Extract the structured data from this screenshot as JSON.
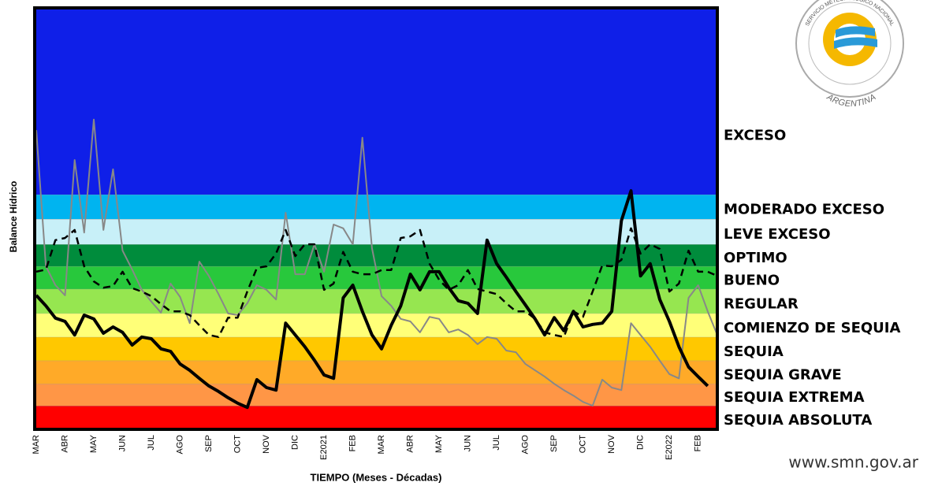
{
  "chart_data": {
    "type": "line",
    "y_label": "Balance Hídrico",
    "x_label": "TIEMPO (Meses - Décadas)",
    "source": "www.smn.gov.ar",
    "ylim": [
      0,
      100
    ],
    "categories": [
      "MAR",
      null,
      null,
      "ABR",
      null,
      null,
      "MAY",
      null,
      null,
      "JUN",
      null,
      null,
      "JUL",
      null,
      null,
      "AGO",
      null,
      null,
      "SEP",
      null,
      null,
      "OCT",
      null,
      null,
      "NOV",
      null,
      null,
      "DIC",
      null,
      null,
      "E2021",
      null,
      null,
      "FEB",
      null,
      null,
      "MAR",
      null,
      null,
      "ABR",
      null,
      null,
      "MAY",
      null,
      null,
      "JUN",
      null,
      null,
      "JUL",
      null,
      null,
      "AGO",
      null,
      null,
      "SEP",
      null,
      null,
      "OCT",
      null,
      null,
      "NOV",
      null,
      null,
      "DIC",
      null,
      null,
      "E2022",
      null,
      null,
      "FEB",
      null,
      null
    ],
    "bands": [
      {
        "name": "SEQUIA ABSOLUTA",
        "color": "#ff0000",
        "from": 0,
        "to": 5.6
      },
      {
        "name": "SEQUIA EXTREMA",
        "color": "#ff9646",
        "from": 5.6,
        "to": 10.8
      },
      {
        "name": "SEQUIA GRAVE",
        "color": "#ffaa28",
        "from": 10.8,
        "to": 16.3
      },
      {
        "name": "SEQUIA",
        "color": "#ffc800",
        "from": 16.3,
        "to": 21.9
      },
      {
        "name": "COMIENZO DE SEQUIA",
        "color": "#ffff78",
        "from": 21.9,
        "to": 27.5
      },
      {
        "name": "REGULAR",
        "color": "#96e650",
        "from": 27.5,
        "to": 33.3
      },
      {
        "name": "BUENO",
        "color": "#28c83c",
        "from": 33.3,
        "to": 38.7
      },
      {
        "name": "OPTIMO",
        "color": "#008c3c",
        "from": 38.7,
        "to": 43.9
      },
      {
        "name": "LEVE EXCESO",
        "color": "#c8f0f8",
        "from": 43.9,
        "to": 49.9
      },
      {
        "name": "MODERADO EXCESO",
        "color": "#00b4f0",
        "from": 49.9,
        "to": 55.7
      },
      {
        "name": "EXCESO",
        "color": "#0f1fe8",
        "from": 55.7,
        "to": 100
      }
    ],
    "series": [
      {
        "color": "#888888",
        "style": "solid",
        "width": 2,
        "values": [
          71.0,
          38.7,
          34.2,
          31.8,
          63.9,
          46.7,
          73.5,
          47.3,
          61.7,
          42.4,
          37.9,
          33.1,
          30.3,
          27.7,
          34.6,
          31.4,
          25.2,
          39.8,
          36.4,
          32.1,
          27.5,
          27.1,
          29.9,
          34.2,
          33.1,
          30.8,
          51.4,
          36.8,
          36.8,
          43.9,
          37.4,
          48.6,
          47.7,
          43.9,
          69.2,
          43.0,
          31.6,
          29.3,
          26.2,
          25.6,
          23.0,
          26.7,
          26.2,
          23.0,
          23.7,
          22.4,
          20.2,
          21.9,
          21.5,
          18.7,
          18.3,
          15.5,
          14.0,
          12.5,
          10.8,
          9.3,
          8.0,
          6.5,
          5.6,
          11.8,
          9.9,
          9.3,
          25.2,
          22.4,
          19.6,
          16.3,
          13.1,
          12.1,
          31.2,
          34.2,
          28.0,
          22.4
        ]
      },
      {
        "color": "#000000",
        "style": "dashed",
        "width": 2.5,
        "values": [
          37.4,
          37.9,
          44.9,
          45.4,
          47.3,
          38.7,
          35.1,
          33.6,
          34.0,
          37.4,
          33.5,
          32.7,
          31.6,
          29.7,
          28.0,
          28.0,
          27.1,
          24.7,
          22.4,
          21.9,
          26.5,
          26.5,
          32.7,
          38.3,
          38.7,
          41.7,
          47.3,
          41.1,
          43.9,
          43.9,
          33.1,
          34.6,
          42.1,
          37.4,
          36.8,
          36.8,
          37.8,
          37.8,
          45.4,
          45.8,
          47.3,
          39.3,
          35.5,
          33.1,
          34.2,
          37.8,
          33.3,
          32.7,
          32.1,
          29.9,
          28.0,
          28.0,
          26.2,
          23.0,
          22.4,
          21.9,
          28.0,
          26.7,
          32.7,
          38.9,
          38.7,
          40.2,
          47.7,
          41.7,
          43.9,
          42.8,
          32.7,
          34.6,
          42.4,
          37.4,
          37.4,
          36.4
        ]
      },
      {
        "color": "#000000",
        "style": "solid",
        "width": 4,
        "values": [
          31.8,
          29.3,
          26.4,
          25.6,
          22.4,
          27.1,
          26.2,
          22.8,
          24.3,
          23.0,
          20.0,
          21.9,
          21.5,
          19.1,
          18.5,
          15.5,
          14.0,
          12.1,
          10.3,
          9.0,
          7.5,
          6.2,
          5.2,
          11.8,
          9.9,
          9.3,
          25.2,
          22.4,
          19.6,
          16.4,
          12.9,
          12.1,
          31.2,
          34.2,
          28.0,
          22.4,
          19.1,
          24.7,
          29.3,
          36.8,
          33.1,
          37.4,
          37.4,
          33.6,
          30.5,
          29.9,
          27.5,
          44.9,
          39.3,
          36.1,
          32.7,
          29.5,
          26.2,
          22.4,
          26.5,
          23.4,
          28.0,
          24.3,
          24.9,
          25.2,
          28.0,
          49.5,
          56.6,
          36.4,
          39.3,
          30.8,
          25.6,
          19.6,
          14.8,
          12.5,
          10.3,
          null
        ]
      }
    ]
  },
  "logo": {
    "top": "SERVICIO METEOROLOGICO NACIONAL",
    "bottom": "ARGENTINA"
  }
}
